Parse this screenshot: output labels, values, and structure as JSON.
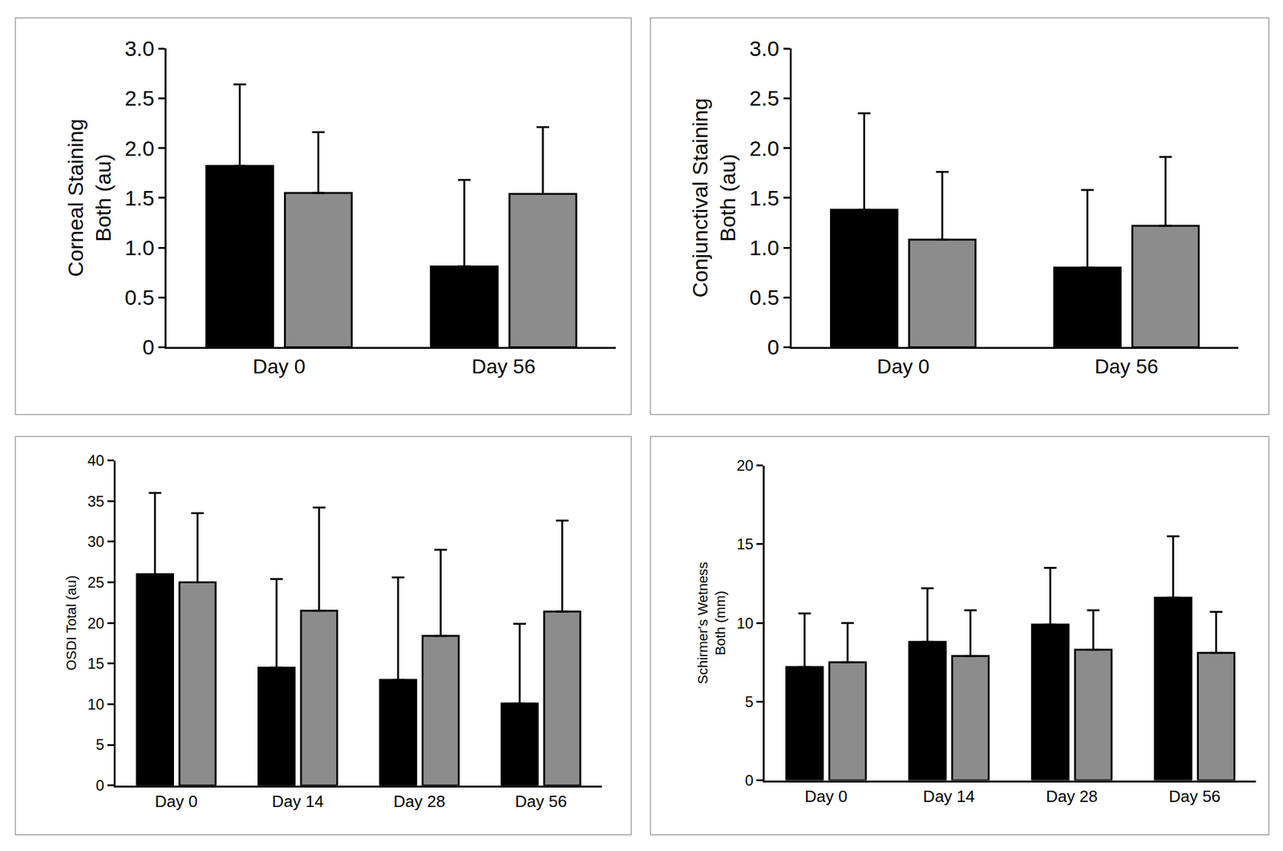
{
  "chart_data": [
    {
      "type": "bar",
      "ylabel": "Corneal Staining\nBoth (au)",
      "categories": [
        "Day 0",
        "Day 56"
      ],
      "series": [
        {
          "color": "#000000",
          "values": [
            1.82,
            0.81
          ],
          "errors": [
            0.82,
            0.87
          ]
        },
        {
          "color": "#8c8c8c",
          "values": [
            1.55,
            1.54
          ],
          "errors": [
            0.61,
            0.67
          ]
        }
      ],
      "ylim": [
        0,
        3
      ],
      "yticks": [
        0,
        0.5,
        {
          "value": 1,
          "label": "1.0"
        },
        1.5,
        {
          "value": 2,
          "label": "2.0"
        },
        2.5,
        {
          "value": 3,
          "label": "3.0"
        }
      ],
      "grid": false
    },
    {
      "type": "bar",
      "ylabel": "Conjunctival Staining\nBoth (au)",
      "categories": [
        "Day 0",
        "Day 56"
      ],
      "series": [
        {
          "color": "#000000",
          "values": [
            1.38,
            0.8
          ],
          "errors": [
            0.97,
            0.78
          ]
        },
        {
          "color": "#8c8c8c",
          "values": [
            1.08,
            1.22
          ],
          "errors": [
            0.68,
            0.69
          ]
        }
      ],
      "ylim": [
        0,
        3
      ],
      "yticks": [
        0,
        0.5,
        {
          "value": 1,
          "label": "1.0"
        },
        1.5,
        {
          "value": 2,
          "label": "2.0"
        },
        2.5,
        {
          "value": 3,
          "label": "3.0"
        }
      ],
      "grid": false
    },
    {
      "type": "bar",
      "ylabel": "OSDI Total (au)",
      "categories": [
        "Day 0",
        "Day 14",
        "Day 28",
        "Day 56"
      ],
      "series": [
        {
          "color": "#000000",
          "values": [
            26.0,
            14.5,
            13.0,
            10.1
          ],
          "errors": [
            10.0,
            10.9,
            12.6,
            9.8
          ]
        },
        {
          "color": "#8c8c8c",
          "values": [
            25.0,
            21.5,
            18.4,
            21.4
          ],
          "errors": [
            8.5,
            12.7,
            10.6,
            11.2
          ]
        }
      ],
      "ylim": [
        0,
        40
      ],
      "yticks": [
        0,
        5,
        10,
        15,
        20,
        25,
        30,
        35,
        40
      ],
      "grid": false
    },
    {
      "type": "bar",
      "ylabel": "Schirmer's Wetness\nBoth (mm)",
      "categories": [
        "Day 0",
        "Day 14",
        "Day 28",
        "Day 56"
      ],
      "series": [
        {
          "color": "#000000",
          "values": [
            7.2,
            8.8,
            9.9,
            11.6
          ],
          "errors": [
            3.4,
            3.4,
            3.6,
            3.9
          ]
        },
        {
          "color": "#8c8c8c",
          "values": [
            7.5,
            7.9,
            8.3,
            8.1
          ],
          "errors": [
            2.5,
            2.9,
            2.5,
            2.6
          ]
        }
      ],
      "ylim": [
        0,
        20
      ],
      "yticks": [
        0,
        5,
        10,
        15,
        20
      ],
      "grid": false
    }
  ]
}
